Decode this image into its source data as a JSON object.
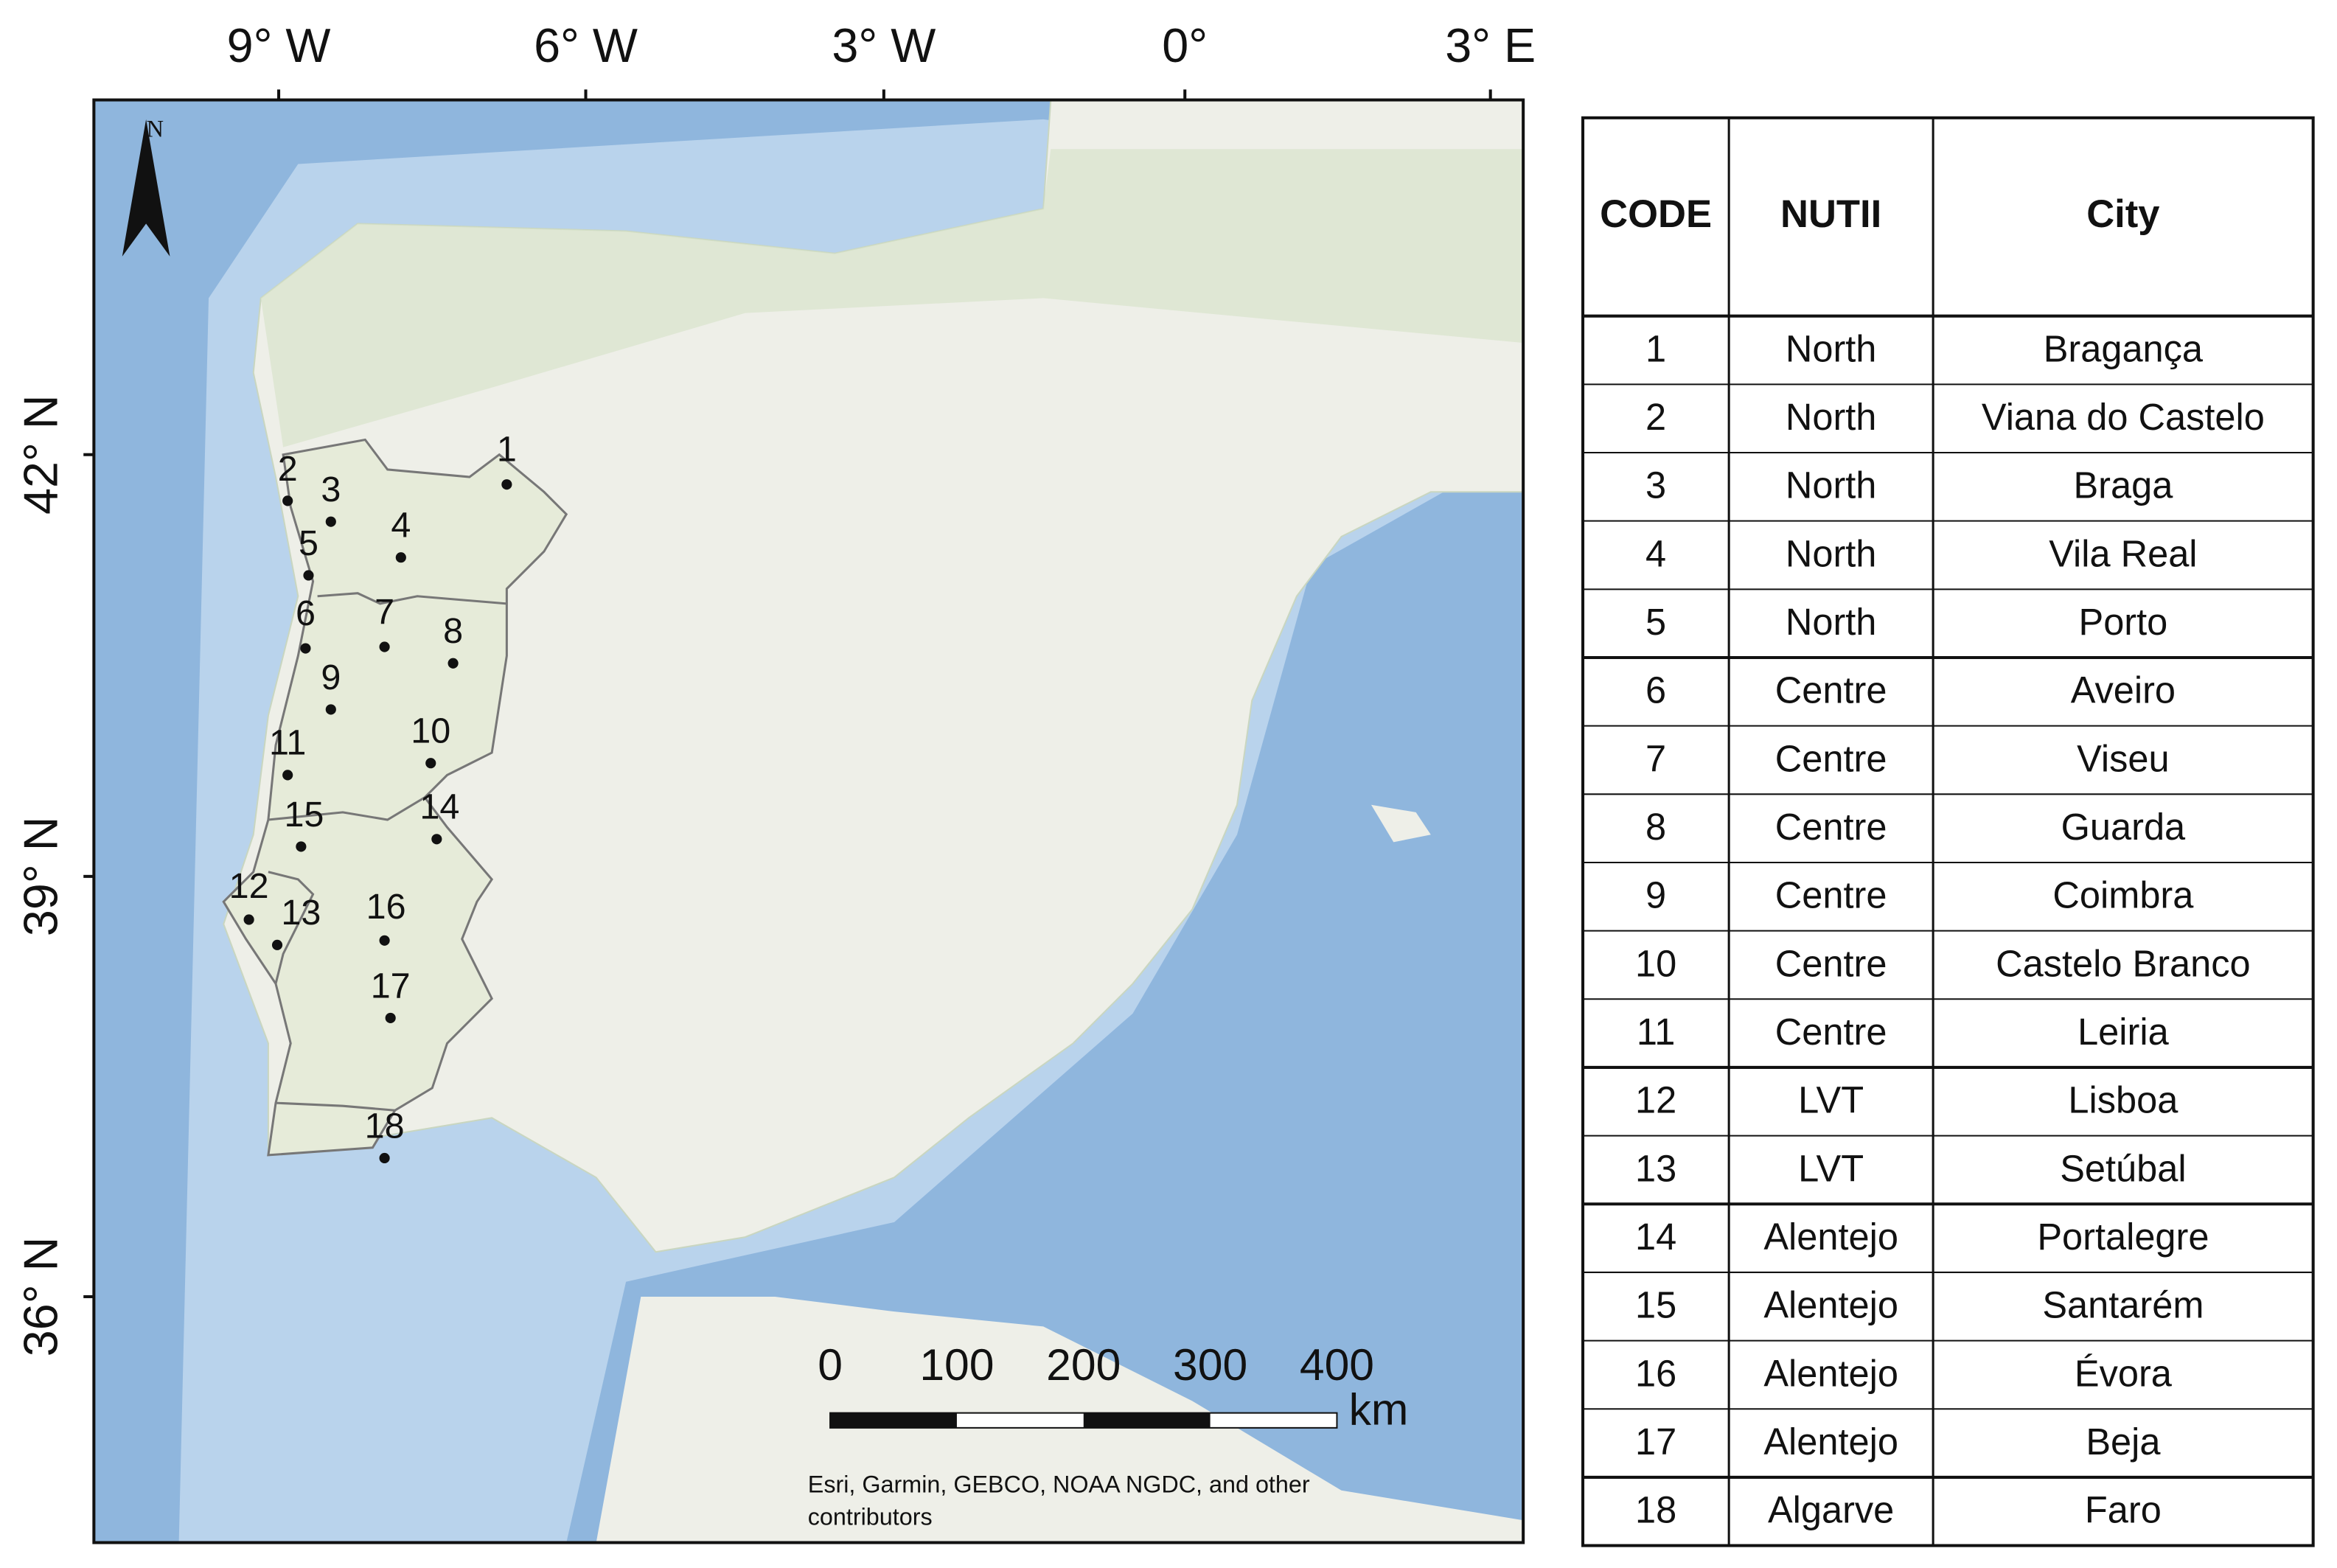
{
  "map": {
    "lon_labels": [
      "9° W",
      "6° W",
      "3° W",
      "0°",
      "3° E"
    ],
    "lat_labels": [
      "42° N",
      "39° N",
      "36° N"
    ],
    "north": "N",
    "scale": {
      "labels": [
        "0",
        "100",
        "200",
        "300",
        "400"
      ],
      "unit": "km"
    },
    "attribution": [
      "Esri, Garmin, GEBCO, NOAA NGDC, and other",
      "contributors"
    ],
    "points": [
      "1",
      "2",
      "3",
      "4",
      "5",
      "6",
      "7",
      "8",
      "9",
      "10",
      "11",
      "12",
      "13",
      "14",
      "15",
      "16",
      "17",
      "18"
    ]
  },
  "table": {
    "header": [
      "CODE",
      "NUTII",
      "City"
    ],
    "rows": [
      [
        "1",
        "North",
        "Bragança"
      ],
      [
        "2",
        "North",
        "Viana do Castelo"
      ],
      [
        "3",
        "North",
        "Braga"
      ],
      [
        "4",
        "North",
        "Vila Real"
      ],
      [
        "5",
        "North",
        "Porto"
      ],
      [
        "6",
        "Centre",
        "Aveiro"
      ],
      [
        "7",
        "Centre",
        "Viseu"
      ],
      [
        "8",
        "Centre",
        "Guarda"
      ],
      [
        "9",
        "Centre",
        "Coimbra"
      ],
      [
        "10",
        "Centre",
        "Castelo Branco"
      ],
      [
        "11",
        "Centre",
        "Leiria"
      ],
      [
        "12",
        "LVT",
        "Lisboa"
      ],
      [
        "13",
        "LVT",
        "Setúbal"
      ],
      [
        "14",
        "Alentejo",
        "Portalegre"
      ],
      [
        "15",
        "Alentejo",
        "Santarém"
      ],
      [
        "16",
        "Alentejo",
        "Évora"
      ],
      [
        "17",
        "Alentejo",
        "Beja"
      ],
      [
        "18",
        "Algarve",
        "Faro"
      ]
    ]
  }
}
